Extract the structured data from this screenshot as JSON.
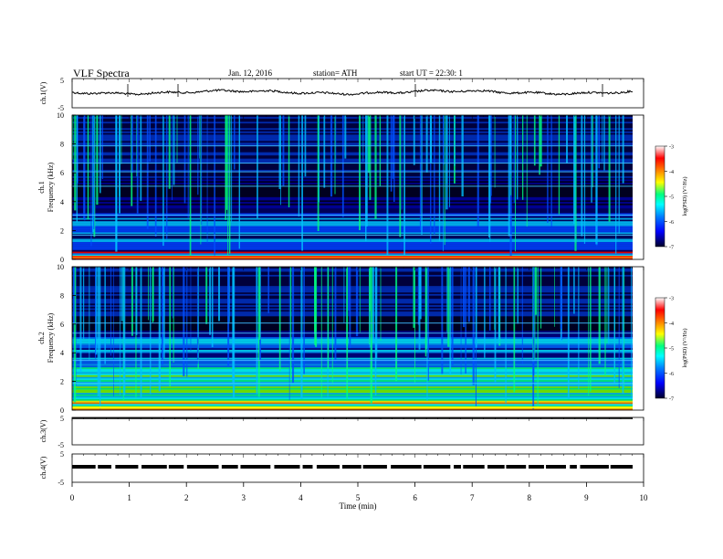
{
  "header": {
    "title": "VLF Spectra",
    "date": "Jan. 12, 2016",
    "station": "station= ATH",
    "start": "start UT = 22:30: 1"
  },
  "chart_data": {
    "type": "heatmap",
    "xlabel": "Time (min)",
    "x_ticks": [
      "0",
      "1",
      "2",
      "3",
      "4",
      "5",
      "6",
      "7",
      "8",
      "9",
      "10"
    ],
    "xlim": [
      0,
      10
    ],
    "panels": [
      {
        "id": "ch1v",
        "kind": "line",
        "ylabel": "ch.1(V)",
        "yticks": [
          "5",
          "-5"
        ],
        "ylim": [
          -5,
          5
        ]
      },
      {
        "id": "ch1f",
        "kind": "spectrogram",
        "ylabel_top": "ch.1",
        "ylabel": "Frequency (kHz)",
        "yticks": [
          "0",
          "2",
          "4",
          "6",
          "8",
          "10"
        ],
        "ylim": [
          0,
          10
        ]
      },
      {
        "id": "ch2f",
        "kind": "spectrogram",
        "ylabel_top": "ch.2",
        "ylabel": "Frequency (kHz)",
        "yticks": [
          "0",
          "2",
          "4",
          "6",
          "8",
          "10"
        ],
        "ylim": [
          0,
          10
        ]
      },
      {
        "id": "ch3v",
        "kind": "line",
        "ylabel": "ch.3(V)",
        "yticks": [
          "5",
          "-5"
        ],
        "ylim": [
          -5,
          5
        ]
      },
      {
        "id": "ch4v",
        "kind": "line",
        "ylabel": "ch.4(V)",
        "yticks": [
          "5",
          "-5"
        ],
        "ylim": [
          -5,
          5
        ]
      }
    ],
    "colorbar": {
      "label": "log(PSD) (V²/Hz)",
      "ticks": [
        "-3",
        "-4",
        "-5",
        "-6",
        "-7"
      ],
      "range": [
        -7,
        -3
      ],
      "colors": [
        "#00002a",
        "#0000ff",
        "#0080ff",
        "#00ffff",
        "#00ff80",
        "#ffff00",
        "#ff8000",
        "#ff0000",
        "#ffffff"
      ]
    }
  }
}
